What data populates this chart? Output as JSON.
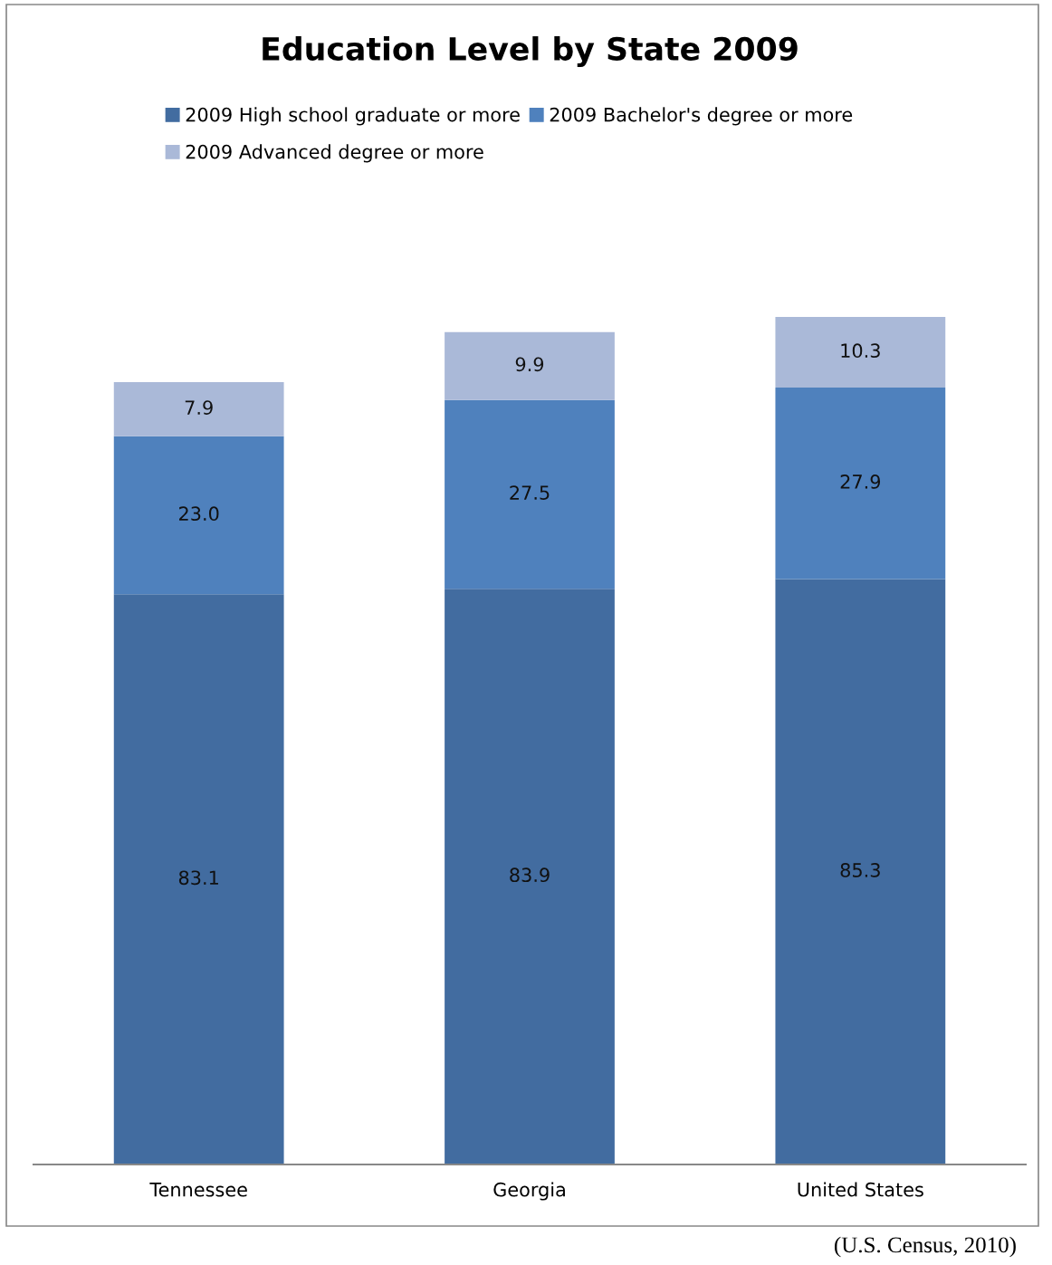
{
  "chart_data": {
    "type": "bar",
    "title": "Education Level by State 2009",
    "categories": [
      "Tennessee",
      "Georgia",
      "United States"
    ],
    "series": [
      {
        "name": "2009 High school graduate or more",
        "color": "#426ca0",
        "values": [
          83.1,
          83.9,
          85.3
        ],
        "value_labels": [
          "83.1",
          "83.9",
          "85.3"
        ]
      },
      {
        "name": "2009 Bachelor's degree or more",
        "color": "#4f81bd",
        "values": [
          23.0,
          27.5,
          27.9
        ],
        "value_labels": [
          "23.0",
          "27.5",
          "27.9"
        ]
      },
      {
        "name": "2009 Advanced degree or more",
        "color": "#aab9d8",
        "values": [
          7.9,
          9.9,
          10.3
        ],
        "value_labels": [
          "7.9",
          "9.9",
          "10.3"
        ]
      }
    ],
    "stacked": true,
    "legend": "top",
    "grid": false,
    "tick_labels": "x",
    "annotations": [
      "(U.S. Census, 2010)"
    ]
  }
}
